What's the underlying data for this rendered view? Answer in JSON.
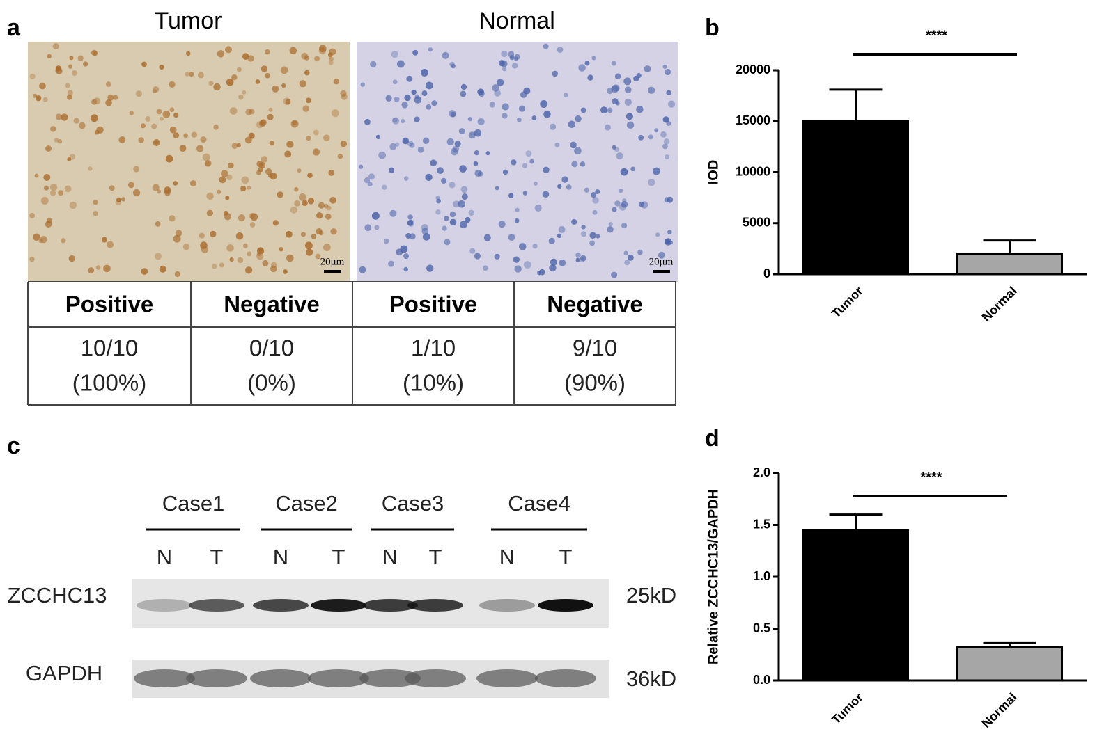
{
  "panel_labels": [
    "a",
    "b",
    "c",
    "d"
  ],
  "panel_a": {
    "image_titles": [
      "Tumor",
      "Normal"
    ],
    "scale_bars": [
      "20μm",
      "20μm"
    ],
    "table": {
      "header": [
        "Positive",
        "Negative",
        "Positive",
        "Negative"
      ],
      "rows": [
        [
          "10/10",
          "0/10",
          "1/10",
          "9/10"
        ],
        [
          "(100%)",
          "(0%)",
          "(10%)",
          "(90%)"
        ]
      ]
    }
  },
  "panel_c": {
    "cases": [
      "Case1",
      "Case2",
      "Case3",
      "Case4"
    ],
    "lanes": [
      "N",
      "T",
      "N",
      "T",
      "N",
      "T",
      "N",
      "T"
    ],
    "proteins": [
      "ZCCHC13",
      "GAPDH"
    ],
    "sizes": [
      "25kD",
      "36kD"
    ]
  },
  "chart_data": [
    {
      "type": "bar",
      "y_label": "IOD",
      "categories": [
        "Tumor",
        "Normal"
      ],
      "values": [
        15000,
        2000
      ],
      "errors": [
        3100,
        1300
      ],
      "colors": [
        "#000000",
        "#a6a6a6"
      ],
      "ylim": [
        0,
        20000
      ],
      "yticks": [
        0,
        5000,
        10000,
        15000,
        20000
      ],
      "significance": "****"
    },
    {
      "type": "bar",
      "y_label": "Relative ZCCHC13/GAPDH",
      "categories": [
        "Tumor",
        "Normal"
      ],
      "values": [
        1.45,
        0.32
      ],
      "errors": [
        0.15,
        0.04
      ],
      "colors": [
        "#000000",
        "#a6a6a6"
      ],
      "ylim": [
        0,
        2
      ],
      "yticks": [
        {
          "value": 0,
          "label": "0.0"
        },
        {
          "value": 0.5,
          "label": "0.5"
        },
        {
          "value": 1,
          "label": "1.0"
        },
        {
          "value": 1.5,
          "label": "1.5"
        },
        {
          "value": 2,
          "label": "2.0"
        }
      ],
      "significance": "****"
    }
  ]
}
